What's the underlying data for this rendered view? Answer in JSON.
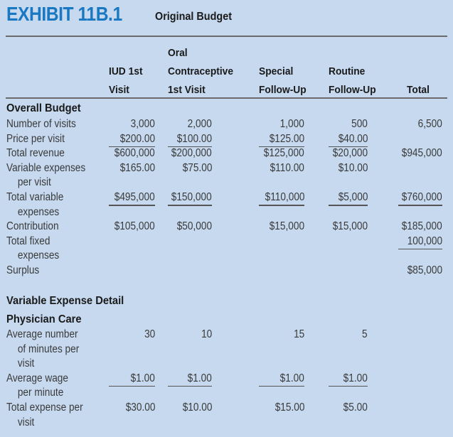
{
  "exhibit": {
    "number": "EXHIBIT 11B.1",
    "title": "Original Budget"
  },
  "columns": [
    [
      "",
      "IUD 1st",
      "Visit"
    ],
    [
      "Oral",
      "Contraceptive",
      "1st Visit"
    ],
    [
      "",
      "Special",
      "Follow-Up"
    ],
    [
      "",
      "Routine",
      "Follow-Up"
    ],
    [
      "",
      "",
      "Total"
    ]
  ],
  "sections": {
    "overall": "Overall Budget",
    "variable_detail": "Variable Expense Detail",
    "physician_care": "Physician Care"
  },
  "overall_rows": [
    {
      "label": [
        "Number of visits"
      ],
      "values": [
        "3,000",
        "2,000",
        "1,000",
        "500",
        "6,500"
      ],
      "underline": [
        false,
        false,
        false,
        false,
        false
      ]
    },
    {
      "label": [
        "Price per visit"
      ],
      "values": [
        "$200.00",
        "$100.00",
        "$125.00",
        "$40.00",
        ""
      ],
      "underline": [
        true,
        true,
        true,
        true,
        false
      ]
    },
    {
      "label": [
        "Total revenue"
      ],
      "values": [
        "$600,000",
        "$200,000",
        "$125,000",
        "$20,000",
        "$945,000"
      ],
      "underline": [
        false,
        false,
        false,
        false,
        false
      ]
    },
    {
      "label": [
        "Variable expenses",
        "per visit"
      ],
      "values": [
        "$165.00",
        "$75.00",
        "$110.00",
        "$10.00",
        ""
      ],
      "underline": [
        false,
        false,
        false,
        false,
        false
      ]
    },
    {
      "label": [
        "Total variable",
        "expenses"
      ],
      "values": [
        "$495,000",
        "$150,000",
        "$110,000",
        "$5,000",
        "$760,000"
      ],
      "underline": [
        true,
        true,
        true,
        true,
        true
      ]
    },
    {
      "label": [
        "Contribution"
      ],
      "values": [
        "$105,000",
        "$50,000",
        "$15,000",
        "$15,000",
        "$185,000"
      ],
      "underline": [
        false,
        false,
        false,
        false,
        false
      ]
    },
    {
      "label": [
        "Total fixed",
        "expenses"
      ],
      "values": [
        "",
        "",
        "",
        "",
        "100,000"
      ],
      "underline": [
        false,
        false,
        false,
        false,
        true
      ]
    },
    {
      "label": [
        "Surplus"
      ],
      "values": [
        "",
        "",
        "",
        "",
        "$85,000"
      ],
      "underline": [
        false,
        false,
        false,
        false,
        false
      ]
    }
  ],
  "physician_rows": [
    {
      "label": [
        "Average number",
        "of minutes per",
        "visit"
      ],
      "values": [
        "30",
        "10",
        "15",
        "5",
        ""
      ],
      "underline": [
        false,
        false,
        false,
        false,
        false
      ]
    },
    {
      "label": [
        "Average wage",
        "per minute"
      ],
      "values": [
        "$1.00",
        "$1.00",
        "$1.00",
        "$1.00",
        ""
      ],
      "underline": [
        true,
        true,
        true,
        true,
        false
      ]
    },
    {
      "label": [
        "Total expense per",
        "visit"
      ],
      "values": [
        "$30.00",
        "$10.00",
        "$15.00",
        "$5.00",
        ""
      ],
      "underline": [
        false,
        false,
        false,
        false,
        false
      ]
    }
  ]
}
